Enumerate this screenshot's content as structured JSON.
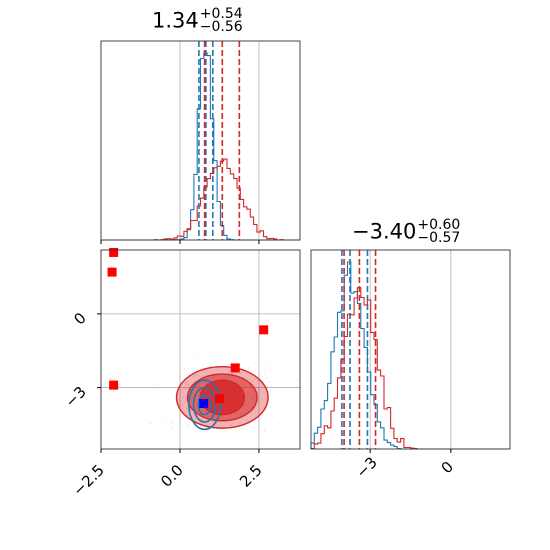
{
  "titles": {
    "p1": {
      "value": "1.34",
      "plus": "+0.54",
      "minus": "−0.56"
    },
    "p2": {
      "value": "−3.40",
      "plus": "+0.60",
      "minus": "−0.57"
    }
  },
  "colors": {
    "red": "#d62728",
    "blue": "#1f77b4",
    "marker_red": "#ff0000",
    "marker_blue": "#0000ff",
    "grid": "#b0b0b0"
  },
  "chart_data": [
    {
      "type": "histogram",
      "panel": "param1-marginal",
      "xlim": [
        -2.5,
        3.8
      ],
      "grid": true,
      "x_ticks": [
        -2.5,
        0.0,
        2.5
      ],
      "x_tick_labels": [],
      "series": [
        {
          "color": "blue",
          "center": 0.82,
          "spread": 0.22,
          "quantiles": [
            0.6,
            0.82,
            1.04
          ]
        },
        {
          "color": "red",
          "center": 1.34,
          "spread": 0.55,
          "quantiles": [
            0.78,
            1.34,
            1.88
          ]
        }
      ]
    },
    {
      "type": "histogram",
      "panel": "param2-marginal",
      "xlim": [
        -5.2,
        2.2
      ],
      "grid": true,
      "x_ticks": [
        -3,
        0
      ],
      "x_tick_labels": [
        "−3",
        "0"
      ],
      "series": [
        {
          "color": "blue",
          "center": -3.75,
          "spread": 0.55,
          "quantiles": [
            -4.05,
            -3.75,
            -3.1
          ]
        },
        {
          "color": "red",
          "center": -3.4,
          "spread": 0.6,
          "quantiles": [
            -3.97,
            -3.4,
            -2.8
          ]
        }
      ]
    },
    {
      "type": "scatter",
      "panel": "joint",
      "xlim": [
        -2.5,
        3.8
      ],
      "ylim": [
        -5.5,
        2.6
      ],
      "grid": true,
      "x_ticks": [
        -2.5,
        0.0,
        2.5
      ],
      "x_tick_labels": [
        "−2.5",
        "0.0",
        "2.5"
      ],
      "y_ticks": [
        0,
        -3
      ],
      "y_tick_labels": [
        "0",
        "−3"
      ],
      "red_markers": [
        {
          "x": -2.1,
          "y": 2.5
        },
        {
          "x": -2.15,
          "y": 1.7
        },
        {
          "x": -2.1,
          "y": -2.9
        },
        {
          "x": 2.65,
          "y": -0.65
        },
        {
          "x": 1.75,
          "y": -2.2
        },
        {
          "x": 1.25,
          "y": -3.45
        }
      ],
      "blue_markers": [
        {
          "x": 0.75,
          "y": -3.65
        }
      ],
      "red_contours": {
        "center": [
          1.34,
          -3.4
        ],
        "radii": [
          [
            1.45,
            1.25
          ],
          [
            1.1,
            0.95
          ],
          [
            0.7,
            0.7
          ]
        ]
      },
      "blue_contours": {
        "center": [
          0.78,
          -3.7
        ],
        "radii": [
          [
            0.5,
            1.0
          ],
          [
            0.35,
            0.7
          ],
          [
            0.2,
            0.4
          ]
        ]
      }
    }
  ]
}
